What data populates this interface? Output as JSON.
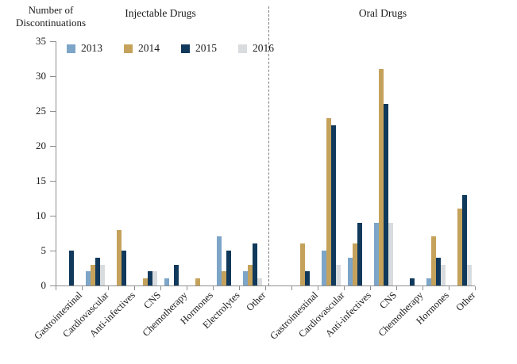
{
  "y_axis_title": {
    "line1": "Number of",
    "line2": "Discontinuations"
  },
  "chart_data": {
    "type": "bar",
    "ylabel": "Number of Discontinuations",
    "ylim": [
      0,
      35
    ],
    "yticks": [
      0,
      5,
      10,
      15,
      20,
      25,
      30,
      35
    ],
    "grid": false,
    "legend_position": "top-left",
    "divider_style": "dashed-vertical",
    "legend": [
      "2013",
      "2014",
      "2015",
      "2016"
    ],
    "series_colors": {
      "2013": "#7DA5C8",
      "2014": "#C5A25B",
      "2015": "#11395B",
      "2016": "#D9DCDE"
    },
    "axis_color": "#8f8f8f",
    "text_color": "#1c1c1c",
    "panels": [
      {
        "title": "Injectable Drugs",
        "categories": [
          "Gastrointestinal",
          "Cardiovascular",
          "Anti-infectives",
          "CNS",
          "Chemotherapy",
          "Hormones",
          "Electrolytes",
          "Other"
        ],
        "series": [
          {
            "name": "2013",
            "values": [
              0,
              2,
              0,
              0,
              1,
              0,
              7,
              2
            ]
          },
          {
            "name": "2014",
            "values": [
              0,
              3,
              8,
              1,
              0,
              1,
              2,
              3
            ]
          },
          {
            "name": "2015",
            "values": [
              5,
              4,
              5,
              2,
              3,
              0,
              5,
              6
            ]
          },
          {
            "name": "2016",
            "values": [
              0,
              3,
              0,
              2,
              0,
              0,
              0,
              1
            ]
          }
        ]
      },
      {
        "title": "Oral Drugs",
        "categories": [
          "Gastrointestinal",
          "Cardiovascular",
          "Anti-infectives",
          "CNS",
          "Chemotherapy",
          "Hormones",
          "Other"
        ],
        "series": [
          {
            "name": "2013",
            "values": [
              0,
              5,
              4,
              9,
              0,
              1,
              0
            ]
          },
          {
            "name": "2014",
            "values": [
              6,
              24,
              6,
              31,
              0,
              7,
              11
            ]
          },
          {
            "name": "2015",
            "values": [
              2,
              23,
              9,
              26,
              1,
              4,
              13
            ]
          },
          {
            "name": "2016",
            "values": [
              0,
              3,
              0,
              9,
              0,
              3,
              3
            ]
          }
        ]
      }
    ]
  }
}
